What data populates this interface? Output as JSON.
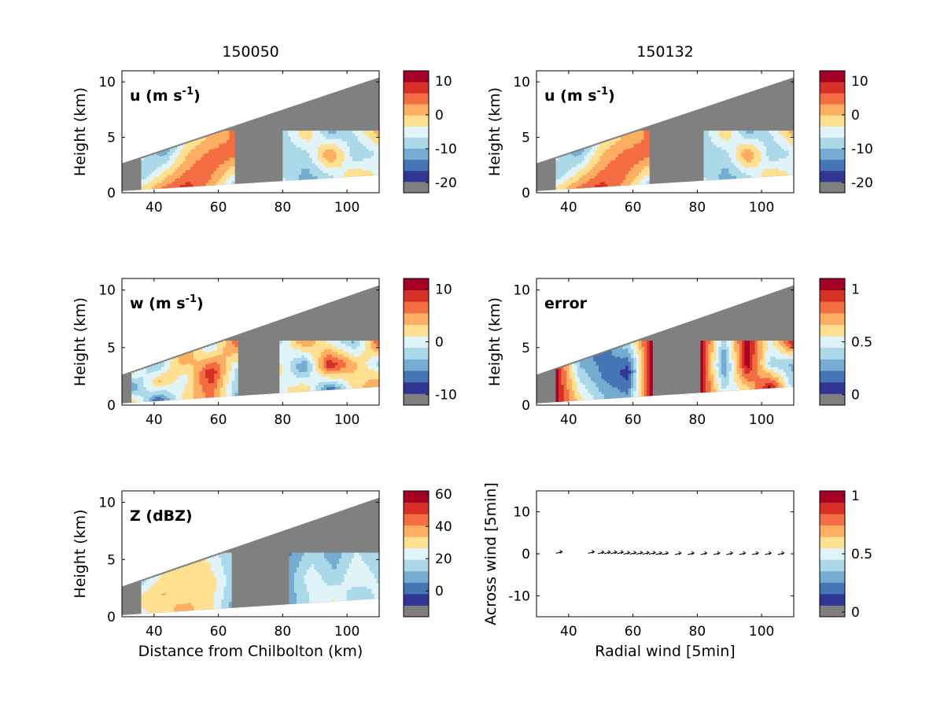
{
  "figure": {
    "titles": [
      "150050",
      "150132"
    ]
  },
  "colormap": [
    "#7f7f7f",
    "#313695",
    "#4575b4",
    "#74add1",
    "#abd9e9",
    "#e0f3f8",
    "#fee090",
    "#fdae61",
    "#f46d43",
    "#d73027",
    "#a50026"
  ],
  "sector_color": "#808080",
  "chart_data": [
    {
      "id": "u-150050",
      "type": "heatmap",
      "title": "150050",
      "label_main": "u (m s",
      "label_sup": "-1",
      "label_close": ")",
      "xlabel": "",
      "ylabel": "Height (km)",
      "xlim": [
        30,
        110
      ],
      "ylim": [
        0,
        11
      ],
      "xticks": [
        "40",
        "60",
        "80",
        "100"
      ],
      "yticks": [
        "0",
        "5",
        "10"
      ],
      "colorbar": {
        "min": -23,
        "max": 13,
        "ticks": [
          "10",
          "0",
          "-10",
          "-20"
        ],
        "tick_values": [
          10,
          0,
          -10,
          -20
        ]
      },
      "echoes": [
        {
          "x0": 36,
          "x1": 65,
          "values": [
            [
              -6,
              -12,
              -2,
              0,
              4
            ],
            [
              -10,
              -4,
              2,
              6,
              3
            ],
            [
              -2,
              4,
              8,
              2,
              -8
            ]
          ]
        },
        {
          "x0": 80,
          "x1": 110,
          "values": [
            [
              -8,
              0,
              -12,
              -6,
              2
            ],
            [
              -10,
              -8,
              4,
              -10,
              -6
            ],
            [
              -6,
              -12,
              -8,
              0,
              -4
            ]
          ]
        }
      ]
    },
    {
      "id": "u-150132",
      "type": "heatmap",
      "title": "150132",
      "label_main": "u (m s",
      "label_sup": "-1",
      "label_close": ")",
      "xlabel": "",
      "ylabel": "Height (km)",
      "xlim": [
        30,
        110
      ],
      "ylim": [
        0,
        11
      ],
      "xticks": [
        "40",
        "60",
        "80",
        "100"
      ],
      "yticks": [
        "0",
        "5",
        "10"
      ],
      "colorbar": {
        "min": -23,
        "max": 13,
        "ticks": [
          "10",
          "0",
          "-10",
          "-20"
        ],
        "tick_values": [
          10,
          0,
          -10,
          -20
        ]
      },
      "echoes": [
        {
          "x0": 36,
          "x1": 65,
          "values": [
            [
              -6,
              -12,
              -2,
              0,
              4
            ],
            [
              -10,
              -4,
              2,
              6,
              3
            ],
            [
              -2,
              4,
              8,
              2,
              -8
            ]
          ]
        },
        {
          "x0": 82,
          "x1": 110,
          "values": [
            [
              -8,
              0,
              -12,
              -6,
              2
            ],
            [
              -10,
              -8,
              4,
              -10,
              -6
            ],
            [
              -6,
              -12,
              -8,
              0,
              -4
            ]
          ]
        }
      ]
    },
    {
      "id": "w-150050",
      "type": "heatmap",
      "label_main": "w (m s",
      "label_sup": "-1",
      "label_close": ")",
      "xlabel": "",
      "ylabel": "Height (km)",
      "xlim": [
        30,
        110
      ],
      "ylim": [
        0,
        11
      ],
      "xticks": [
        "40",
        "60",
        "80",
        "100"
      ],
      "yticks": [
        "0",
        "5",
        "10"
      ],
      "colorbar": {
        "min": -12,
        "max": 12,
        "ticks": [
          "10",
          "0",
          "-10"
        ],
        "tick_values": [
          10,
          0,
          -10
        ]
      },
      "echoes": [
        {
          "x0": 33,
          "x1": 66,
          "values": [
            [
              2,
              -4,
              6,
              -2,
              8
            ],
            [
              -6,
              4,
              0,
              10,
              -2
            ],
            [
              4,
              -8,
              2,
              6,
              -4
            ]
          ]
        },
        {
          "x0": 79,
          "x1": 110,
          "values": [
            [
              -2,
              6,
              0,
              -4,
              8
            ],
            [
              2,
              -6,
              10,
              4,
              -2
            ],
            [
              0,
              4,
              -8,
              2,
              6
            ]
          ]
        }
      ]
    },
    {
      "id": "error-150132",
      "type": "heatmap",
      "label_main": "error",
      "label_sup": "",
      "label_close": "",
      "xlabel": "",
      "ylabel": "Height (km)",
      "xlim": [
        30,
        110
      ],
      "ylim": [
        0,
        11
      ],
      "xticks": [
        "40",
        "60",
        "80",
        "100"
      ],
      "yticks": [
        "0",
        "5",
        "10"
      ],
      "colorbar": {
        "min": -0.1,
        "max": 1.1,
        "ticks": [
          "1",
          "0.5",
          "0"
        ],
        "tick_values": [
          1,
          0.5,
          0
        ]
      },
      "echoes": [
        {
          "x0": 36,
          "x1": 66,
          "values": [
            [
              1.05,
              0.3,
              0.15,
              0.4,
              1.05
            ],
            [
              1.05,
              0.45,
              0.2,
              0.05,
              1.05
            ],
            [
              1.05,
              0.6,
              0.35,
              0.25,
              1.05
            ]
          ]
        },
        {
          "x0": 81,
          "x1": 110,
          "values": [
            [
              1.05,
              0.35,
              1.05,
              0.5,
              1.05
            ],
            [
              1.05,
              0.2,
              1.05,
              0.4,
              0.3
            ],
            [
              1.05,
              0.45,
              0.6,
              1.05,
              0.35
            ]
          ]
        }
      ]
    },
    {
      "id": "Z-150050",
      "type": "heatmap",
      "label_main": "Z (dBZ)",
      "label_sup": "",
      "label_close": "",
      "xlabel": "Distance from Chilbolton (km)",
      "ylabel": "Height (km)",
      "xlim": [
        30,
        110
      ],
      "ylim": [
        0,
        11
      ],
      "xticks": [
        "40",
        "60",
        "80",
        "100"
      ],
      "yticks": [
        "0",
        "5",
        "10"
      ],
      "colorbar": {
        "min": -16,
        "max": 62,
        "ticks": [
          "60",
          "40",
          "20",
          "0"
        ],
        "tick_values": [
          60,
          40,
          20,
          0
        ]
      },
      "echoes": [
        {
          "x0": 36,
          "x1": 64,
          "values": [
            [
              16,
              28,
              30,
              26,
              12
            ],
            [
              30,
              34,
              30,
              32,
              16
            ],
            [
              24,
              32,
              36,
              30,
              10
            ]
          ]
        },
        {
          "x0": 82,
          "x1": 110,
          "values": [
            [
              4,
              16,
              8,
              20,
              12
            ],
            [
              10,
              24,
              14,
              26,
              18
            ],
            [
              8,
              20,
              28,
              12,
              22
            ]
          ]
        }
      ]
    },
    {
      "id": "wind-vectors",
      "type": "scatter",
      "xlabel": "Radial wind [5min]",
      "ylabel": "Across wind [5min]",
      "xlim": [
        30,
        110
      ],
      "ylim": [
        -15,
        15
      ],
      "xticks": [
        "40",
        "60",
        "80",
        "100"
      ],
      "yticks": [
        "10",
        "0",
        "-10"
      ],
      "colorbar": {
        "min": -0.04,
        "max": 1.04,
        "ticks": [
          "1",
          "0.5",
          "0"
        ],
        "tick_values": [
          1,
          0.5,
          0
        ]
      },
      "x": [
        37,
        47,
        50,
        52,
        54,
        56,
        58,
        60,
        62,
        64,
        66,
        68,
        70,
        74,
        78,
        82,
        86,
        90,
        94,
        98,
        102,
        106
      ],
      "y": [
        0.3,
        0.3,
        0.2,
        0.2,
        0.2,
        0.2,
        0.1,
        0.1,
        0.1,
        0.1,
        0.1,
        0.0,
        0.0,
        0.0,
        0.0,
        0.0,
        0.0,
        0.0,
        0.0,
        0.0,
        0.0,
        0.0
      ]
    }
  ]
}
